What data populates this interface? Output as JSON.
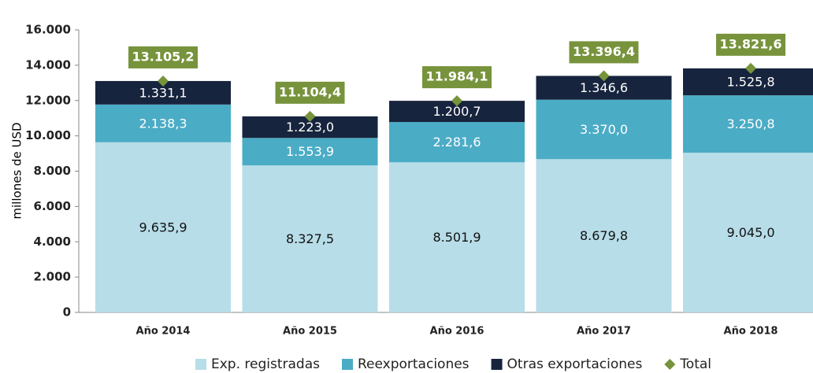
{
  "chart_data": {
    "type": "stacked_bar",
    "y_axis_label": "millones de  USD",
    "categories": [
      "Año 2014",
      "Año 2015",
      "Año 2016",
      "Año 2017",
      "Año 2018"
    ],
    "series": [
      {
        "name": "Exp. registradas",
        "color": "#b7dde8",
        "label_color": "#111111",
        "values": [
          9635.9,
          8327.5,
          8501.9,
          8679.8,
          9045.0
        ],
        "value_labels": [
          "9.635,9",
          "8.327,5",
          "8.501,9",
          "8.679,8",
          "9.045,0"
        ]
      },
      {
        "name": "Reexportaciones",
        "color": "#4bacc6",
        "label_color": "#ffffff",
        "values": [
          2138.3,
          1553.9,
          2281.6,
          3370.0,
          3250.8
        ],
        "value_labels": [
          "2.138,3",
          "1.553,9",
          "2.281,6",
          "3.370,0",
          "3.250,8"
        ]
      },
      {
        "name": "Otras exportaciones",
        "color": "#17243d",
        "label_color": "#ffffff",
        "values": [
          1331.1,
          1223.0,
          1200.7,
          1346.6,
          1525.8
        ],
        "value_labels": [
          "1.331,1",
          "1.223,0",
          "1.200,7",
          "1.346,6",
          "1.525,8"
        ]
      }
    ],
    "total": {
      "name": "Total",
      "color": "#77933c",
      "values": [
        13105.2,
        11104.4,
        11984.1,
        13396.4,
        13821.6
      ],
      "value_labels": [
        "13.105,2",
        "11.104,4",
        "11.984,1",
        "13.396,4",
        "13.821,6"
      ]
    },
    "ylim": [
      0,
      16000
    ],
    "yticks": [
      0,
      {
        "value": 2000,
        "label": "2.000"
      },
      {
        "value": 4000,
        "label": "4.000"
      },
      {
        "value": 6000,
        "label": "6.000"
      },
      {
        "value": 8000,
        "label": "8.000"
      },
      {
        "value": 10000,
        "label": "10.000"
      },
      {
        "value": 12000,
        "label": "12.000"
      },
      {
        "value": 14000,
        "label": "14.000"
      },
      {
        "value": 16000,
        "label": "16.000"
      }
    ],
    "legend": "bottom"
  }
}
